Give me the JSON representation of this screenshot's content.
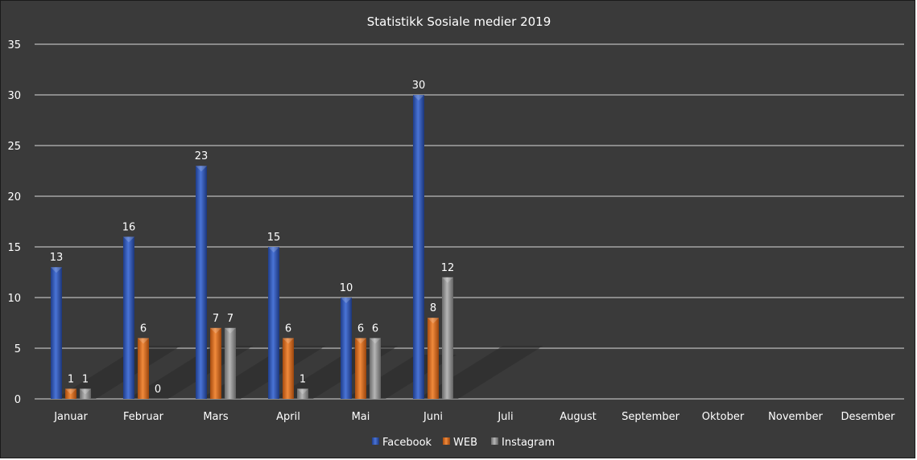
{
  "chart_data": {
    "type": "bar",
    "title": "Statistikk Sosiale medier 2019",
    "xlabel": "",
    "ylabel": "",
    "categories": [
      "Januar",
      "Februar",
      "Mars",
      "April",
      "Mai",
      "Juni",
      "Juli",
      "August",
      "September",
      "Oktober",
      "November",
      "Desember"
    ],
    "series": [
      {
        "name": "Facebook",
        "color": "#2e55b8",
        "values": [
          13,
          16,
          23,
          15,
          10,
          30,
          null,
          null,
          null,
          null,
          null,
          null
        ]
      },
      {
        "name": "WEB",
        "color": "#e36c1a",
        "values": [
          1,
          6,
          7,
          6,
          6,
          8,
          null,
          null,
          null,
          null,
          null,
          null
        ]
      },
      {
        "name": "Instagram",
        "color": "#8c8c8c",
        "values": [
          1,
          0,
          7,
          1,
          6,
          12,
          null,
          null,
          null,
          null,
          null,
          null
        ]
      }
    ],
    "ylim": [
      0,
      35
    ],
    "yticks": [
      0,
      5,
      10,
      15,
      20,
      25,
      30,
      35
    ],
    "grid": true,
    "legend": "bottom",
    "background": "#3a3a3a",
    "gridline_color": "#d9d9d9"
  }
}
